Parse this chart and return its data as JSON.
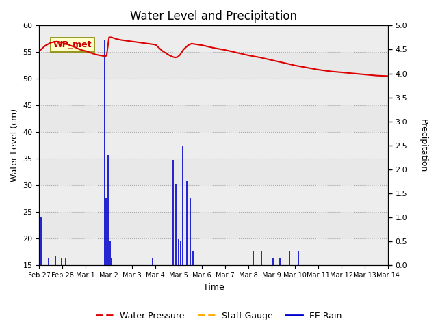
{
  "title": "Water Level and Precipitation",
  "xlabel": "Time",
  "ylabel_left": "Water Level (cm)",
  "ylabel_right": "Precipitation",
  "annotation_text": "WP_met",
  "annotation_color": "#cc0000",
  "annotation_bg": "#ffffcc",
  "annotation_border": "#888800",
  "ylim_left": [
    15,
    60
  ],
  "ylim_right": [
    0.0,
    5.0
  ],
  "yticks_left": [
    15,
    20,
    25,
    30,
    35,
    40,
    45,
    50,
    55,
    60
  ],
  "yticks_right": [
    0.0,
    0.5,
    1.0,
    1.5,
    2.0,
    2.5,
    3.0,
    3.5,
    4.0,
    4.5,
    5.0
  ],
  "xtick_labels": [
    "Feb 27",
    "Feb 28",
    "Mar 1",
    "Mar 2",
    "Mar 3",
    "Mar 4",
    "Mar 5",
    "Mar 6",
    "Mar 7",
    "Mar 8",
    "Mar 9",
    "Mar 10",
    "Mar 11",
    "Mar 12",
    "Mar 13",
    "Mar 14"
  ],
  "plot_bg": "#e8e8e8",
  "water_pressure_color": "#dd0000",
  "staff_gauge_color": "#ffaa00",
  "ee_rain_color": "#0000cc",
  "legend_items": [
    "Water Pressure",
    "Staff Gauge",
    "EE Rain"
  ],
  "legend_colors": [
    "#dd0000",
    "#ffaa00",
    "#0000cc"
  ],
  "wp_x": [
    0,
    0.25,
    0.5,
    0.75,
    1.0,
    1.25,
    1.5,
    1.75,
    2.0,
    2.2,
    2.4,
    2.6,
    2.75,
    2.85,
    2.9,
    3.0,
    3.1,
    3.3,
    3.5,
    4.0,
    4.5,
    5.0,
    5.3,
    5.6,
    5.75,
    5.85,
    5.95,
    6.05,
    6.2,
    6.4,
    6.55,
    6.7,
    7.0,
    7.5,
    8.0,
    8.5,
    9.0,
    9.5,
    10.0,
    10.5,
    11.0,
    11.5,
    12.0,
    12.5,
    13.0,
    13.5,
    14.0,
    14.5,
    15.0
  ],
  "wp_y": [
    55.2,
    56.2,
    56.8,
    57.0,
    56.8,
    56.4,
    56.0,
    55.5,
    55.2,
    54.9,
    54.6,
    54.4,
    54.3,
    54.2,
    54.5,
    57.8,
    57.8,
    57.5,
    57.3,
    57.0,
    56.7,
    56.4,
    55.2,
    54.4,
    54.1,
    54.0,
    54.1,
    54.5,
    55.5,
    56.3,
    56.6,
    56.5,
    56.3,
    55.8,
    55.4,
    54.9,
    54.4,
    54.0,
    53.5,
    53.0,
    52.5,
    52.1,
    51.7,
    51.4,
    51.2,
    51.0,
    50.8,
    50.6,
    50.5
  ],
  "rain_x": [
    0.03,
    0.08,
    0.4,
    0.7,
    0.95,
    1.15,
    2.82,
    2.88,
    2.95,
    3.05,
    3.12,
    4.88,
    5.75,
    5.88,
    5.98,
    6.08,
    6.18,
    6.35,
    6.5,
    6.62,
    9.2,
    9.55,
    10.05,
    10.35,
    10.75,
    11.15
  ],
  "rain_y_right": [
    2.2,
    1.0,
    0.15,
    0.2,
    0.15,
    0.15,
    4.7,
    1.4,
    2.3,
    0.5,
    0.15,
    0.15,
    2.2,
    1.7,
    0.55,
    0.5,
    2.5,
    1.75,
    1.4,
    0.3,
    0.3,
    0.3,
    0.15,
    0.15,
    0.3,
    0.3
  ]
}
